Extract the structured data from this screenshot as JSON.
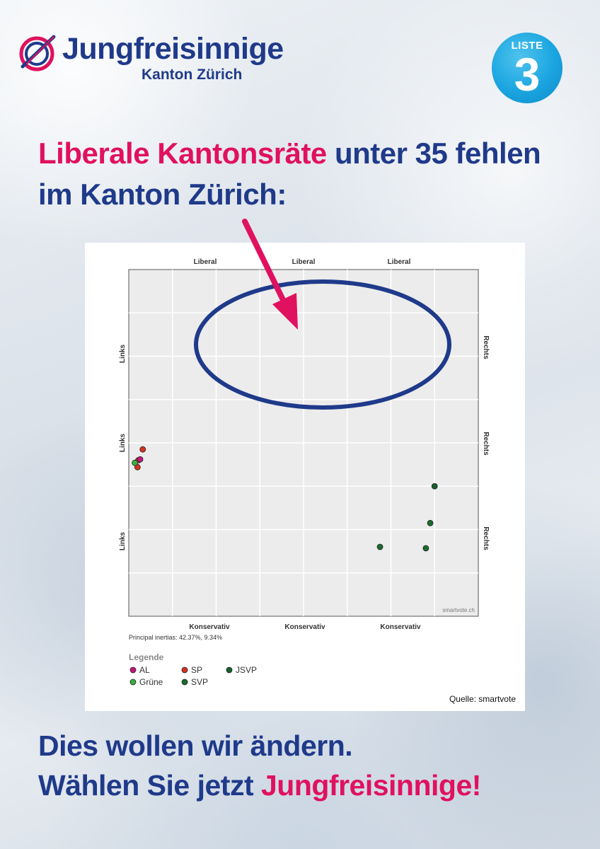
{
  "logo": {
    "name": "Jungfreisinnige",
    "subtitle": "Kanton Zürich"
  },
  "badge": {
    "label": "LISTE",
    "number": "3"
  },
  "headline": {
    "line1_pink": "Liberale Kantonsräte",
    "line1_blue": " unter 35 fehlen",
    "line2": "im Kanton Zürich:"
  },
  "footer": {
    "line1": "Dies wollen wir ändern.",
    "line2_blue": "Wählen Sie jetzt ",
    "line2_pink": "Jungfreisinnige!"
  },
  "colors": {
    "blue": "#1f3a8a",
    "pink": "#e0115f",
    "AL": "#c0177e",
    "SP": "#d6331f",
    "Grüne": "#3fae3c",
    "SVP": "#1b6b2b",
    "JSVP": "#15612a"
  },
  "chart_data": {
    "type": "scatter",
    "top_labels": [
      "Liberal",
      "Liberal",
      "Liberal"
    ],
    "bottom_labels": [
      "Konservativ",
      "Konservativ",
      "Konservativ"
    ],
    "left_labels": [
      "Links",
      "Links",
      "Links"
    ],
    "right_labels": [
      "Rechts",
      "Rechts",
      "Rechts"
    ],
    "watermark": "smartvote.ch",
    "inertias": "Principal inertias: 42.37%, 9.34%",
    "legend_title": "Legende",
    "legend": [
      {
        "name": "AL",
        "color": "#c0177e"
      },
      {
        "name": "SP",
        "color": "#d6331f"
      },
      {
        "name": "JSVP",
        "color": "#15612a"
      },
      {
        "name": "Grüne",
        "color": "#3fae3c"
      },
      {
        "name": "SVP",
        "color": "#1b6b2b"
      }
    ],
    "source": "Quelle: smartvote",
    "xlim": [
      0,
      8
    ],
    "ylim": [
      0,
      8
    ],
    "grid": true,
    "series": [
      {
        "name": "SP",
        "points": [
          [
            0.32,
            3.85
          ],
          [
            0.22,
            3.6
          ],
          [
            0.2,
            3.44
          ]
        ]
      },
      {
        "name": "Grüne",
        "points": [
          [
            0.14,
            3.54
          ]
        ]
      },
      {
        "name": "AL",
        "points": [
          [
            0.26,
            3.62
          ]
        ]
      },
      {
        "name": "SVP",
        "points": [
          [
            5.75,
            1.6
          ],
          [
            6.8,
            1.57
          ],
          [
            6.9,
            2.15
          ]
        ]
      },
      {
        "name": "JSVP",
        "points": [
          [
            7.0,
            3.0
          ]
        ]
      }
    ]
  }
}
